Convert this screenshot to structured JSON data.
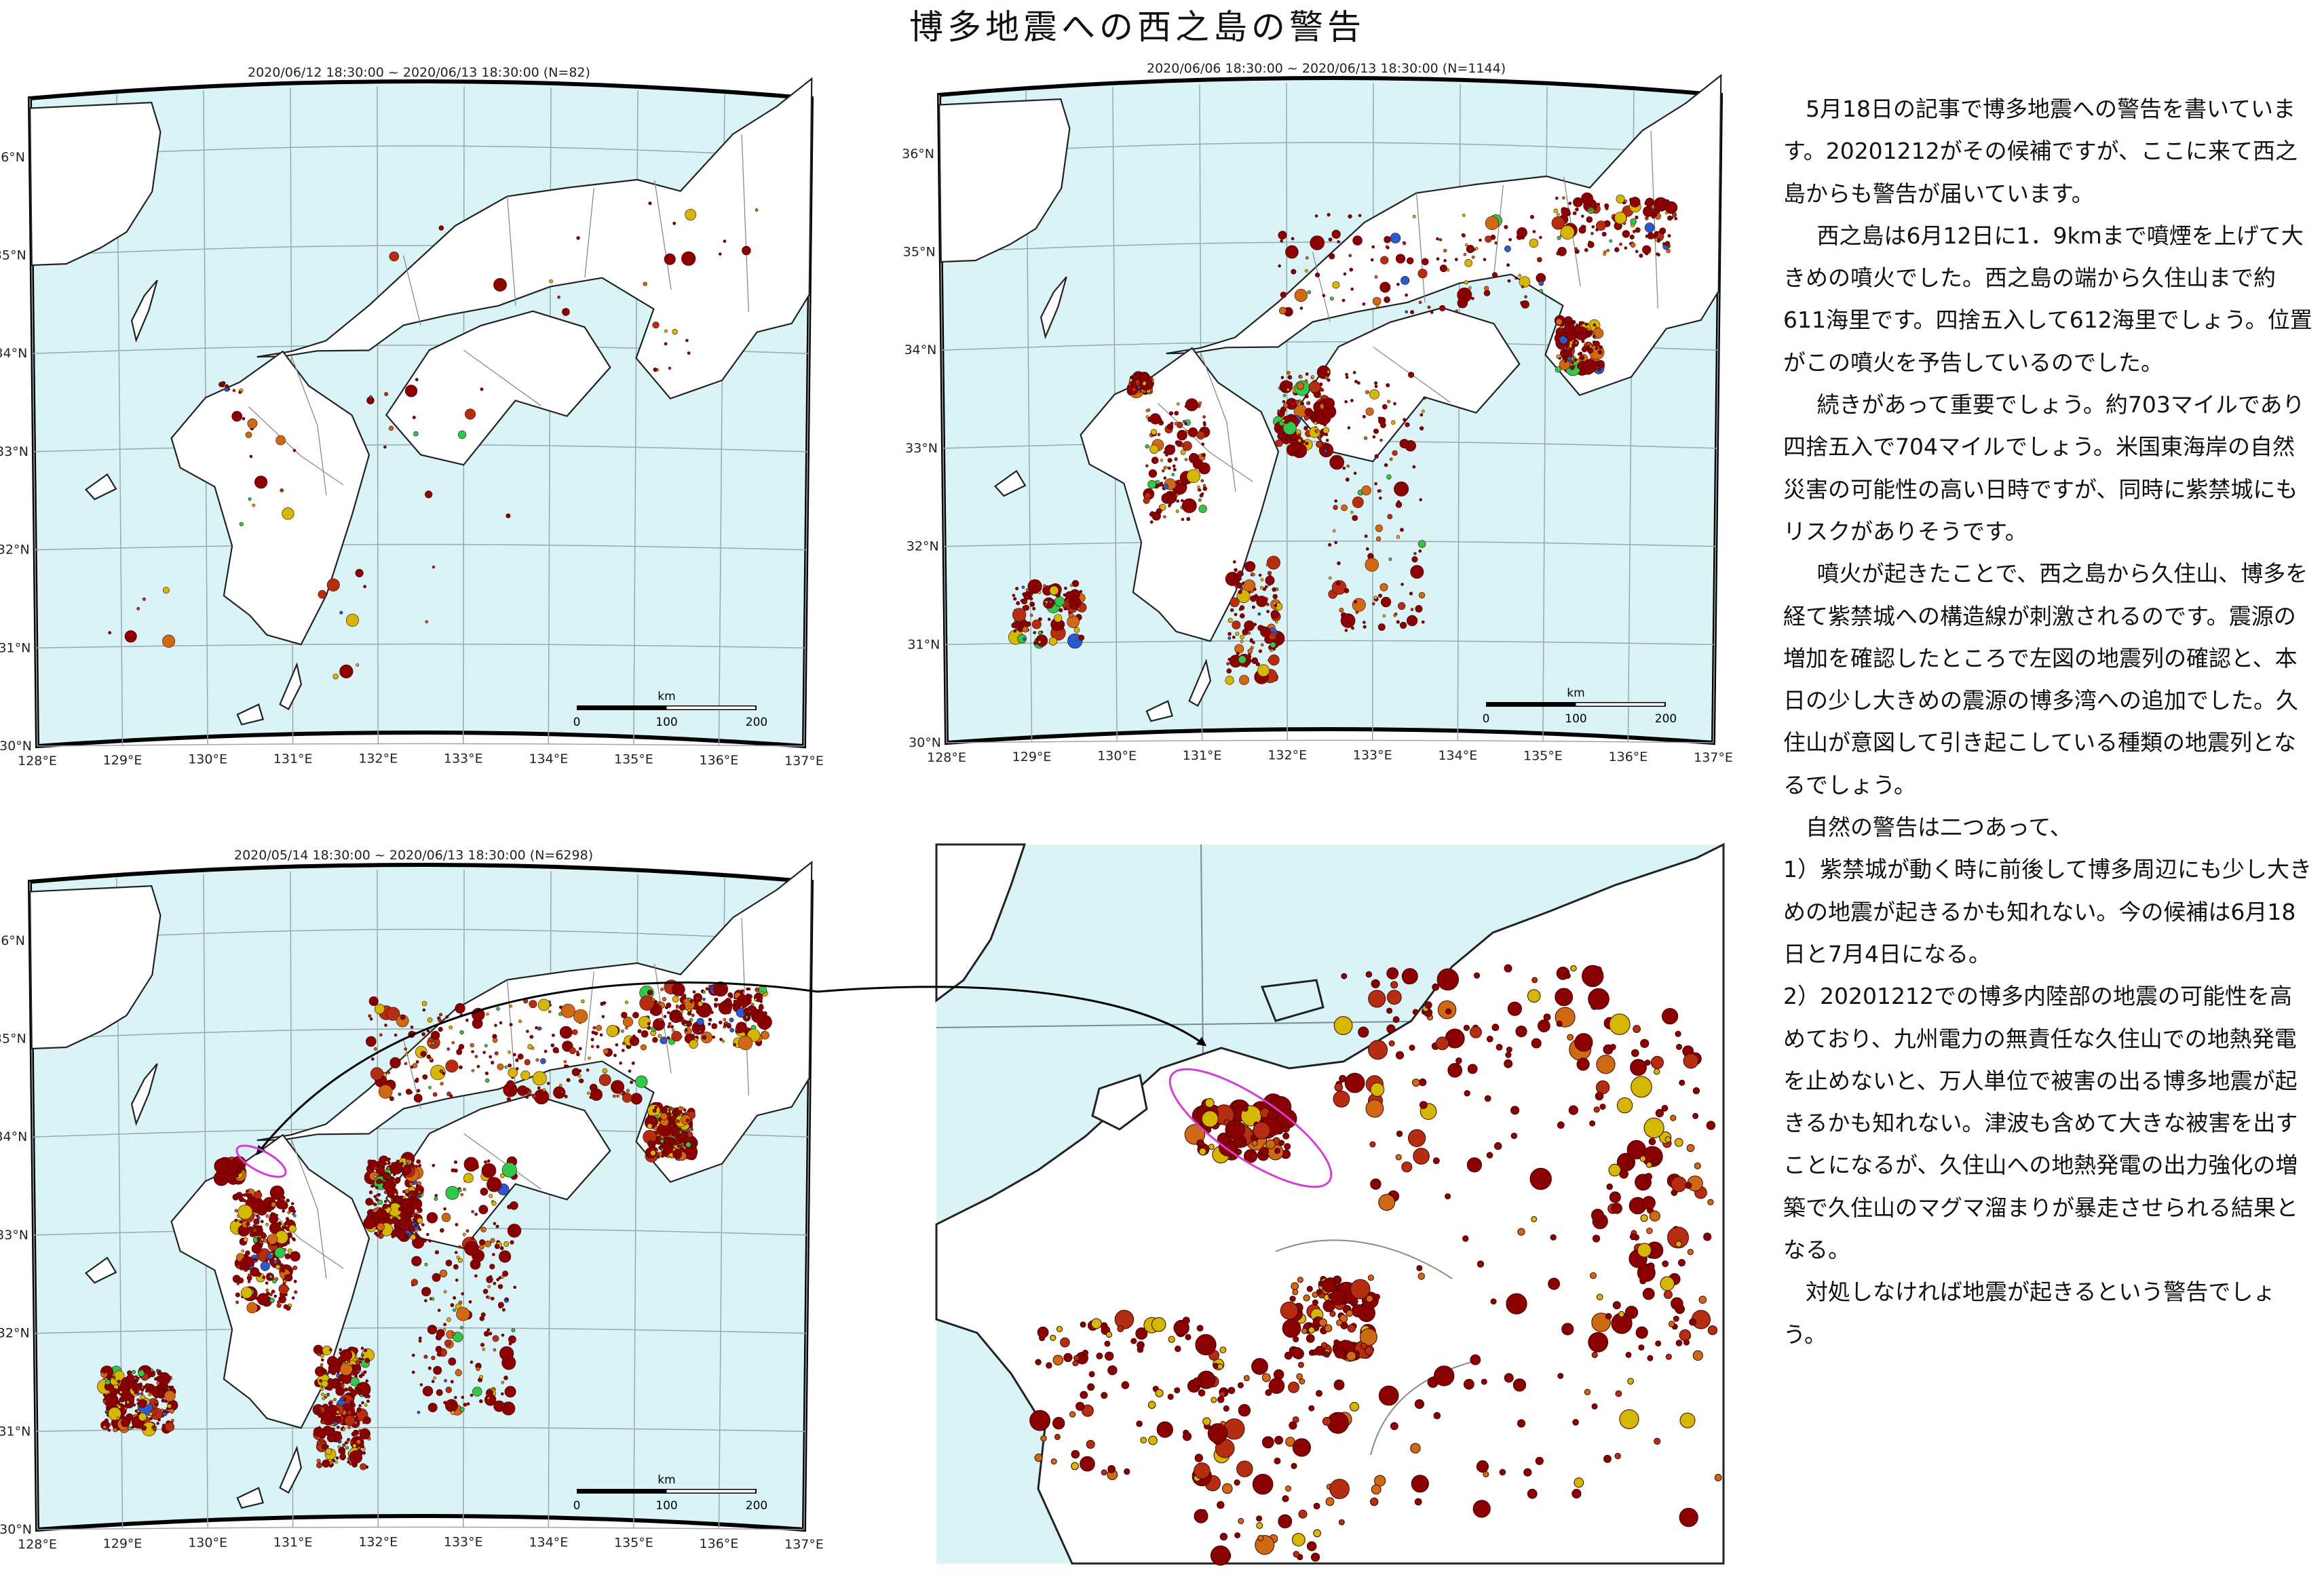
{
  "title": "博多地震への西之島の警告",
  "maps": [
    {
      "caption": "2020/06/12 18:30:00 ~ 2020/06/13 18:30:00 (N=82)",
      "count": 82
    },
    {
      "caption": "2020/06/06 18:30:00 ~ 2020/06/13 18:30:00 (N=1144)",
      "count": 1144
    },
    {
      "caption": "2020/05/14 18:30:00 ~ 2020/06/13 18:30:00 (N=6298)",
      "count": 6298
    }
  ],
  "map_axes": {
    "lon_labels": [
      "128°E",
      "129°E",
      "130°E",
      "131°E",
      "132°E",
      "133°E",
      "134°E",
      "135°E",
      "136°E",
      "137°E"
    ],
    "lat_labels": [
      "30°N",
      "31°N",
      "32°N",
      "33°N",
      "34°N",
      "35°N",
      "36°N"
    ]
  },
  "scale_bar": {
    "unit": "km",
    "ticks": [
      "0",
      "100",
      "200"
    ]
  },
  "colors": {
    "sea": "#d9f3f7",
    "land": "#ffffff",
    "coast": "#222222",
    "quake_deep": "#8b0000",
    "quake_mid": "#d4b800",
    "quake_green": "#2ec84a",
    "arrow": "#000000",
    "ellipse": "#d63cd6"
  },
  "paragraphs": [
    "5月18日の記事で博多地震への警告を書いています。20201212がその候補ですが、ここに来て西之島からも警告が届いています。",
    "西之島は6月12日に1．9kmまで噴煙を上げて大きめの噴火でした。西之島の端から久住山まで約611海里です。四捨五入して612海里でしょう。位置がこの噴火を予告しているのでした。",
    "続きがあって重要でしょう。約703マイルであり四捨五入で704マイルでしょう。米国東海岸の自然災害の可能性の高い日時ですが、同時に紫禁城にもリスクがありそうです。",
    "噴火が起きたことで、西之島から久住山、博多を経て紫禁城への構造線が刺激されるのです。震源の増加を確認したところで左図の地震列の確認と、本日の少し大きめの震源の博多湾への追加でした。久住山が意図して引き起こしている種類の地震列となるでしょう。",
    "自然の警告は二つあって、",
    "1）紫禁城が動く時に前後して博多周辺にも少し大きめの地震が起きるかも知れない。今の候補は6月18日と7月4日になる。",
    "2）20201212での博多内陸部の地震の可能性を高めており、九州電力の無責任な久住山での地熱発電を止めないと、万人単位で被害の出る博多地震が起きるかも知れない。津波も含めて大きな被害を出すことになるが、久住山への地熱発電の出力強化の増築で久住山のマグマ溜まりが暴走させられる結果となる。",
    "対処しなければ地震が起きるという警告でしょう。"
  ]
}
